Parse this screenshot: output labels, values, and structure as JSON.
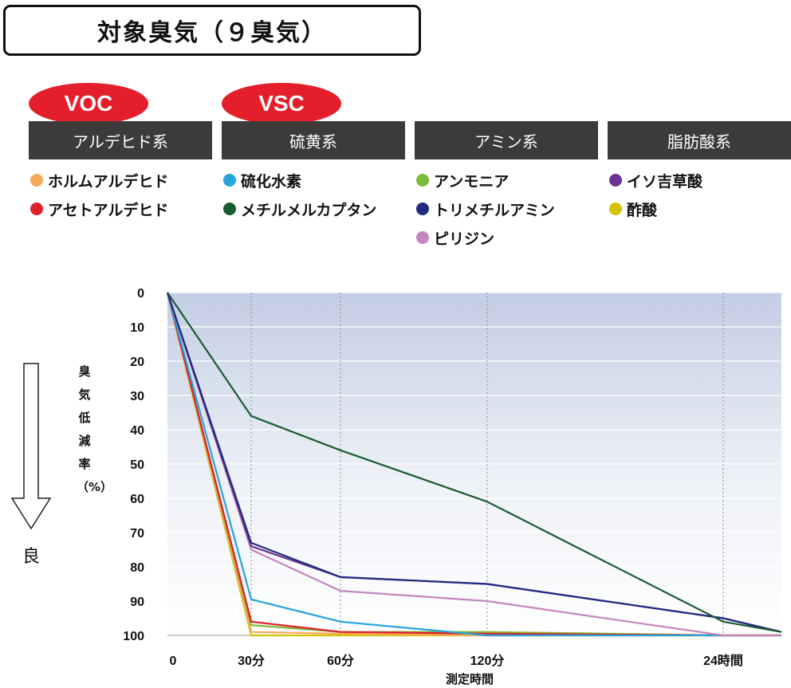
{
  "title": "対象臭気（９臭気）",
  "badges": [
    {
      "label": "VOC",
      "color": "#e51e2b"
    },
    {
      "label": "VSC",
      "color": "#e51e2b"
    }
  ],
  "groups": [
    {
      "label": "アルデヒド系",
      "items": [
        {
          "name": "ホルムアルデヒド",
          "color": "#f5a95b"
        },
        {
          "name": "アセトアルデヒド",
          "color": "#e01f26"
        }
      ]
    },
    {
      "label": "硫黄系",
      "items": [
        {
          "name": "硫化水素",
          "color": "#27a3de"
        },
        {
          "name": "メチルメルカプタン",
          "color": "#1a5c32"
        }
      ]
    },
    {
      "label": "アミン系",
      "items": [
        {
          "name": "アンモニア",
          "color": "#7dbb3a"
        },
        {
          "name": "トリメチルアミン",
          "color": "#1f2a80"
        },
        {
          "name": "ピリジン",
          "color": "#c386bf"
        }
      ]
    },
    {
      "label": "脂肪酸系",
      "items": [
        {
          "name": "イソ吉草酸",
          "color": "#6a3594"
        },
        {
          "name": "酢酸",
          "color": "#d4c400"
        }
      ]
    }
  ],
  "arrow_label": "良",
  "chart_data": {
    "type": "line",
    "ylabel": "臭気低減率（%）",
    "xlabel": "測定時間",
    "y_inverted": true,
    "ylim": [
      0,
      100
    ],
    "yticks": [
      0,
      10,
      20,
      30,
      40,
      50,
      60,
      70,
      80,
      90,
      100
    ],
    "x_positions": [
      0,
      1,
      2,
      3,
      4,
      5
    ],
    "x_ticklabels": [
      "0",
      "30分",
      "60分",
      "120分",
      "24時間",
      ""
    ],
    "x_gridlines_at": [
      1,
      2,
      3,
      4
    ],
    "grid": true,
    "series": [
      {
        "name": "メチルメルカプタン",
        "color": "#1a5c32",
        "values": [
          0,
          36,
          46,
          61,
          96,
          99
        ]
      },
      {
        "name": "トリメチルアミン",
        "color": "#1f2a80",
        "values": [
          0,
          73,
          83,
          85,
          95,
          99
        ]
      },
      {
        "name": "イソ吉草酸",
        "color": "#6a3594",
        "values": [
          0,
          74,
          83,
          85,
          95,
          99
        ]
      },
      {
        "name": "ピリジン",
        "color": "#c386bf",
        "values": [
          0,
          75,
          87,
          90,
          100,
          100
        ]
      },
      {
        "name": "硫化水素",
        "color": "#27a3de",
        "values": [
          0,
          89.5,
          96,
          100,
          100,
          100
        ]
      },
      {
        "name": "アセトアルデヒド",
        "color": "#e01f26",
        "values": [
          0,
          96,
          99,
          99.5,
          100,
          100
        ]
      },
      {
        "name": "アンモニア",
        "color": "#7dbb3a",
        "values": [
          0,
          97,
          99,
          99,
          100,
          100
        ]
      },
      {
        "name": "ホルムアルデヒド",
        "color": "#f5a95b",
        "values": [
          0,
          99,
          99.5,
          100,
          100,
          100
        ]
      },
      {
        "name": "酢酸",
        "color": "#d4c400",
        "values": [
          0,
          100,
          100,
          100,
          100,
          100
        ]
      }
    ]
  }
}
